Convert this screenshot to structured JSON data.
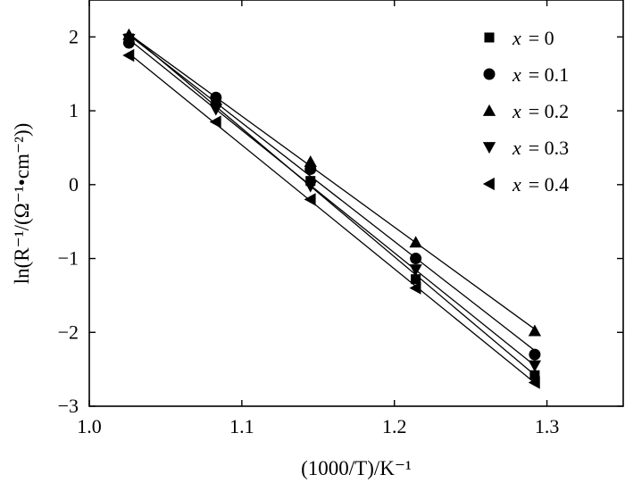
{
  "chart_data": {
    "type": "scatter",
    "xlabel": "(1000/T)/K⁻¹",
    "ylabel": "ln(R⁻¹/(Ω⁻¹•cm⁻²))",
    "xlim": [
      1.0,
      1.35
    ],
    "ylim": [
      -3,
      2.5
    ],
    "x_ticks": [
      1.0,
      1.1,
      1.2,
      1.3
    ],
    "x_tick_labels": [
      "1.0",
      "1.1",
      "1.2",
      "1.3"
    ],
    "y_ticks": [
      -3,
      -2,
      -1,
      0,
      1,
      2
    ],
    "y_tick_labels": [
      "−3",
      "−2",
      "−1",
      "0",
      "1",
      "2"
    ],
    "legend_position": "top-right",
    "grid": false,
    "fit_lines": true,
    "x": [
      1.026,
      1.083,
      1.145,
      1.214,
      1.292
    ],
    "series": [
      {
        "name": "x = 0",
        "legend_var": "x",
        "legend_value": "= 0",
        "marker": "square",
        "values": [
          1.98,
          1.12,
          0.05,
          -1.28,
          -2.58
        ]
      },
      {
        "name": "x = 0.1",
        "legend_var": "x",
        "legend_value": "= 0.1",
        "marker": "circle",
        "values": [
          1.92,
          1.18,
          0.21,
          -1.0,
          -2.3
        ]
      },
      {
        "name": "x = 0.2",
        "legend_var": "x",
        "legend_value": "= 0.2",
        "marker": "triangle-up",
        "values": [
          2.03,
          1.15,
          0.31,
          -0.78,
          -1.98
        ]
      },
      {
        "name": "x = 0.3",
        "legend_var": "x",
        "legend_value": "= 0.3",
        "marker": "triangle-down",
        "values": [
          1.97,
          1.02,
          -0.02,
          -1.15,
          -2.45
        ]
      },
      {
        "name": "x = 0.4",
        "legend_var": "x",
        "legend_value": "= 0.4",
        "marker": "triangle-left",
        "values": [
          1.75,
          0.85,
          -0.2,
          -1.4,
          -2.68
        ]
      }
    ]
  }
}
